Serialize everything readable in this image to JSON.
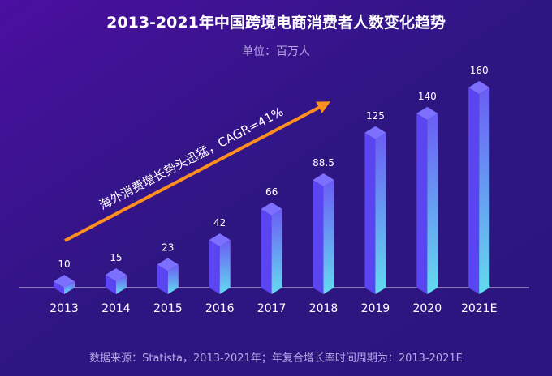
{
  "chart_data": {
    "type": "bar",
    "title": "2013-2021年中国跨境电商消费者人数变化趋势",
    "subtitle": "单位：百万人",
    "categories": [
      "2013",
      "2014",
      "2015",
      "2016",
      "2017",
      "2018",
      "2019",
      "2020",
      "2021E"
    ],
    "values": [
      10,
      15,
      23,
      42,
      66,
      88.5,
      125,
      140,
      160
    ],
    "data_labels": [
      "10",
      "15",
      "23",
      "42",
      "66",
      "88.5",
      "125",
      "140",
      "160"
    ],
    "ylim": [
      0,
      160
    ],
    "grid": false,
    "annotation": "海外消费增长势头迅猛，CAGR=41%",
    "source": "数据来源：Statista，2013-2021年；年复合增长率时间周期为：2013-2021E",
    "colors": {
      "background_start": "#4a0fa0",
      "background_end": "#2d1580",
      "bar_left": "#5b45f2",
      "bar_right_top": "#6b5cf5",
      "bar_right_bottom": "#62dcef",
      "bar_top": "#7d70ff",
      "arrow": "#ff8f1f"
    }
  }
}
